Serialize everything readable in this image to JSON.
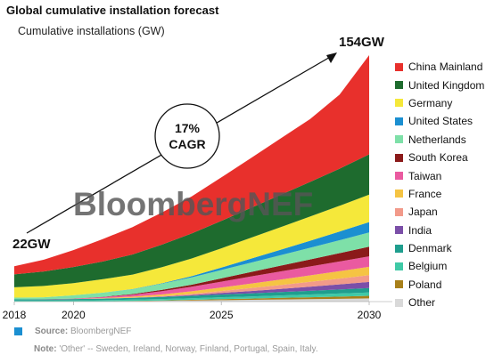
{
  "title": "Global cumulative installation forecast",
  "subtitle": "Cumulative installations (GW)",
  "watermark": "BloombergNEF",
  "annotations": {
    "start_value": "22GW",
    "end_value": "154GW",
    "cagr_pct": "17%",
    "cagr_label": "CAGR"
  },
  "source": {
    "label": "Source:",
    "text": "BloombergNEF",
    "color": "#1b8fd1"
  },
  "note": {
    "label": "Note:",
    "text": "'Other' -- Sweden, Ireland, Norway, Finland, Portugal, Spain, Italy."
  },
  "chart_data": {
    "type": "area",
    "stacked": true,
    "x": [
      2018,
      2019,
      2020,
      2021,
      2022,
      2023,
      2024,
      2025,
      2026,
      2027,
      2028,
      2029,
      2030
    ],
    "x_ticks": [
      "2018",
      "2020",
      "2025",
      "2030"
    ],
    "y_axis_shown": false,
    "legend_position": "right",
    "series": [
      {
        "name": "Other",
        "color": "#d9d9d9",
        "values": [
          0.1,
          0.1,
          0.1,
          0.2,
          0.3,
          0.5,
          0.7,
          0.9,
          1.1,
          1.3,
          1.5,
          1.7,
          2.0
        ]
      },
      {
        "name": "Poland",
        "color": "#a8801a",
        "values": [
          0,
          0,
          0,
          0,
          0.1,
          0.2,
          0.4,
          0.6,
          0.8,
          1.0,
          1.2,
          1.4,
          1.6
        ]
      },
      {
        "name": "Belgium",
        "color": "#3fc9a6",
        "values": [
          0.5,
          0.5,
          0.6,
          0.7,
          0.8,
          0.9,
          1.0,
          1.2,
          1.3,
          1.5,
          1.7,
          1.9,
          2.1
        ]
      },
      {
        "name": "Denmark",
        "color": "#1f9e8e",
        "values": [
          0.8,
          0.8,
          0.9,
          1.0,
          1.1,
          1.3,
          1.5,
          1.7,
          1.9,
          2.1,
          2.3,
          2.5,
          2.7
        ]
      },
      {
        "name": "India",
        "color": "#7b4fa8",
        "values": [
          0,
          0,
          0,
          0,
          0,
          0.2,
          0.5,
          1.0,
          1.5,
          2.0,
          2.6,
          3.2,
          3.8
        ]
      },
      {
        "name": "Japan",
        "color": "#f29a8a",
        "values": [
          0,
          0,
          0,
          0.1,
          0.2,
          0.4,
          0.7,
          1.2,
          1.8,
          2.4,
          3.0,
          3.6,
          4.2
        ]
      },
      {
        "name": "France",
        "color": "#f5c443",
        "values": [
          0,
          0,
          0,
          0.2,
          0.6,
          1.0,
          1.6,
          2.2,
          2.8,
          3.4,
          4.0,
          4.6,
          5.2
        ]
      },
      {
        "name": "Taiwan",
        "color": "#ea5aa0",
        "values": [
          0,
          0.1,
          0.2,
          0.6,
          1.2,
          2.0,
          2.8,
          3.6,
          4.4,
          5.0,
          5.5,
          6.0,
          6.5
        ]
      },
      {
        "name": "South Korea",
        "color": "#8b1a1a",
        "values": [
          0,
          0,
          0.1,
          0.2,
          0.4,
          0.8,
          1.3,
          2.0,
          2.8,
          3.6,
          4.4,
          5.2,
          6.0
        ]
      },
      {
        "name": "Netherlands",
        "color": "#7ee0a8",
        "values": [
          1.1,
          1.2,
          2.0,
          2.6,
          3.0,
          3.8,
          4.5,
          5.2,
          5.8,
          6.5,
          7.2,
          8.0,
          8.8
        ]
      },
      {
        "name": "United States",
        "color": "#1b8fd1",
        "values": [
          0,
          0,
          0,
          0,
          0.1,
          0.3,
          0.8,
          1.5,
          2.4,
          3.4,
          4.4,
          5.4,
          6.5
        ]
      },
      {
        "name": "Germany",
        "color": "#f5e83a",
        "values": [
          6.4,
          7.0,
          7.6,
          8.3,
          9.0,
          10.0,
          11.0,
          12.0,
          13.0,
          14.0,
          15.0,
          16.0,
          17.0
        ]
      },
      {
        "name": "United Kingdom",
        "color": "#1e6b2e",
        "values": [
          8.0,
          9.0,
          10.0,
          11.0,
          12.5,
          14.0,
          15.5,
          17.0,
          18.5,
          20.0,
          21.5,
          23.0,
          25.0
        ]
      },
      {
        "name": "China Mainland",
        "color": "#e8302c",
        "values": [
          5.1,
          7.3,
          10.5,
          14.0,
          17.0,
          20.0,
          23.0,
          27.0,
          31.0,
          35.0,
          39.0,
          46.0,
          61.6
        ]
      }
    ],
    "totals_labeled": {
      "2018": 22,
      "2030": 154
    }
  }
}
